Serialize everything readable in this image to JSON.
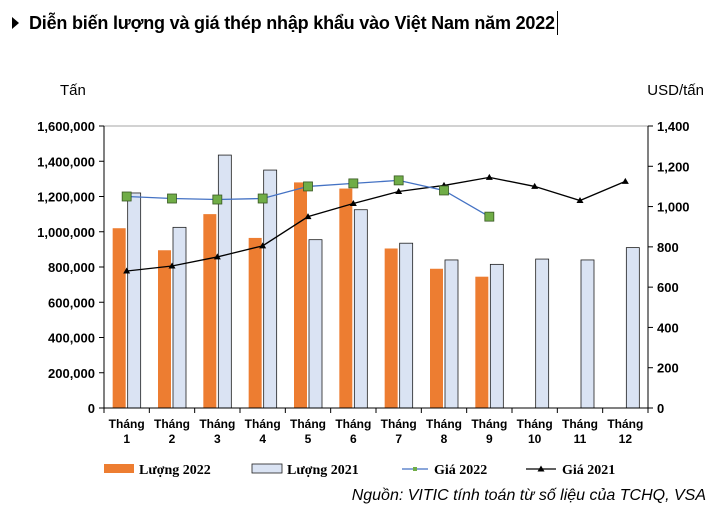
{
  "title": "Diễn biến lượng và giá thép nhập khẩu vào Việt Nam năm 2022",
  "source": "Nguồn: VITIC tính toán từ số liệu của TCHQ, VSA",
  "colors": {
    "bar2022": "#ed7d31",
    "bar2021": "#dae3f3",
    "bar2021_border": "#1f1f1f",
    "price2022_marker": "#70ad47",
    "price2022_line": "#4472c4",
    "price2021": "#000000"
  },
  "chart_data": {
    "type": "bar+line",
    "categories": [
      [
        "Tháng",
        "1"
      ],
      [
        "Tháng",
        "2"
      ],
      [
        "Tháng",
        "3"
      ],
      [
        "Tháng",
        "4"
      ],
      [
        "Tháng",
        "5"
      ],
      [
        "Tháng",
        "6"
      ],
      [
        "Tháng",
        "7"
      ],
      [
        "Tháng",
        "8"
      ],
      [
        "Tháng",
        "9"
      ],
      [
        "Tháng",
        "10"
      ],
      [
        "Tháng",
        "11"
      ],
      [
        "Tháng",
        "12"
      ]
    ],
    "left_axis": {
      "label": "Tấn",
      "min": 0,
      "max": 1600000,
      "step": 200000,
      "tick_labels": [
        "0",
        "200,000",
        "400,000",
        "600,000",
        "800,000",
        "1,000,000",
        "1,200,000",
        "1,400,000",
        "1,600,000"
      ]
    },
    "right_axis": {
      "label": "USD/tấn",
      "min": 0,
      "max": 1400,
      "step": 200,
      "tick_labels": [
        "0",
        "200",
        "400",
        "600",
        "800",
        "1,000",
        "1,200",
        "1,400"
      ]
    },
    "series": [
      {
        "name": "Lượng 2022",
        "kind": "bar",
        "axis": "left",
        "values": [
          1020000,
          895000,
          1100000,
          965000,
          1280000,
          1245000,
          905000,
          790000,
          745000,
          null,
          null,
          null
        ]
      },
      {
        "name": "Lượng 2021",
        "kind": "bar",
        "axis": "left",
        "values": [
          1220000,
          1025000,
          1435000,
          1350000,
          955000,
          1125000,
          935000,
          840000,
          815000,
          845000,
          840000,
          910000
        ]
      },
      {
        "name": "Giá 2022",
        "kind": "line",
        "axis": "right",
        "values": [
          1050,
          1040,
          1035,
          1040,
          1100,
          1115,
          1130,
          1080,
          950,
          null,
          null,
          null
        ]
      },
      {
        "name": "Giá 2021",
        "kind": "line",
        "axis": "right",
        "values": [
          680,
          705,
          750,
          805,
          950,
          1015,
          1075,
          1105,
          1145,
          1100,
          1030,
          1125
        ]
      }
    ]
  }
}
